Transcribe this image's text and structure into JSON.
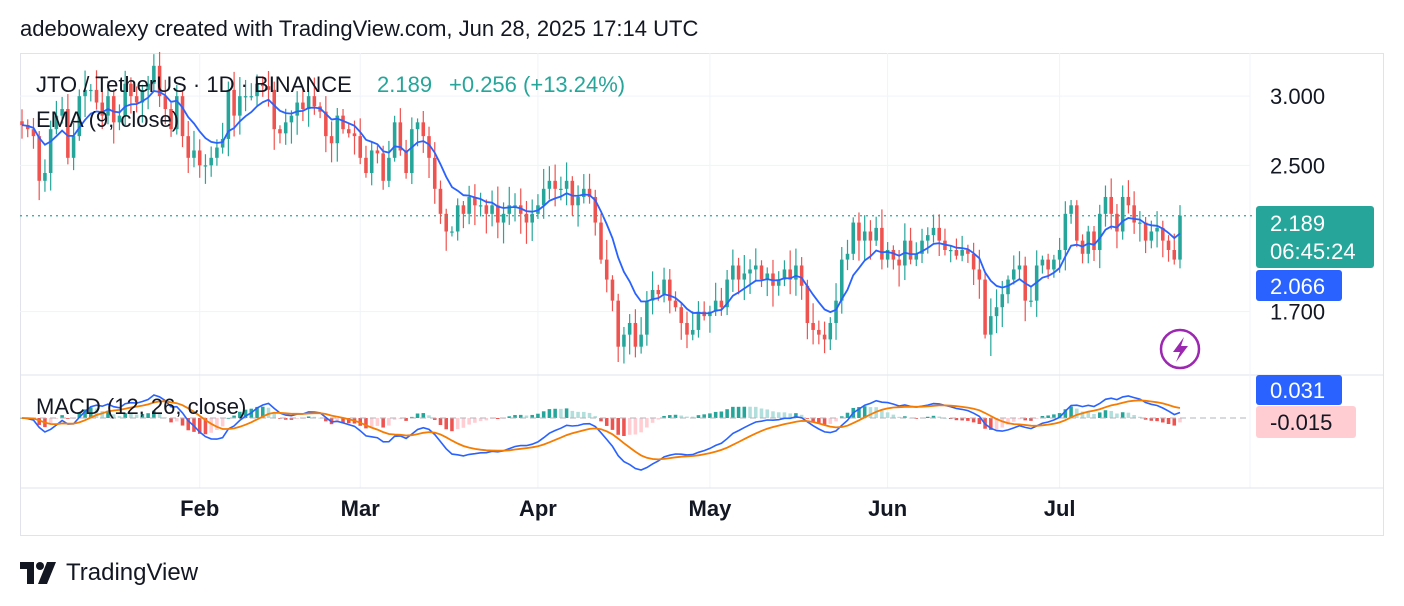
{
  "header": {
    "caption": "adebowalexy created with TradingView.com, Jun 28, 2025 17:14 UTC"
  },
  "legend": {
    "symbol": "JTO / TetherUS · 1D · BINANCE",
    "last": "2.189",
    "change": "+0.256 (+13.24%)",
    "ema": "EMA (9, close)",
    "macd": "MACD (12, 26, close)"
  },
  "price_axis": {
    "ticks": [
      {
        "value": 3.0,
        "label": "3.000"
      },
      {
        "value": 2.5,
        "label": "2.500"
      },
      {
        "value": 1.7,
        "label": "1.700"
      }
    ],
    "badges": {
      "price": "2.189",
      "countdown": "06:45:24",
      "ema": "2.066",
      "macd_line": "0.031",
      "macd_hist": "-0.015"
    }
  },
  "time_axis": {
    "labels": [
      "Feb",
      "Mar",
      "Apr",
      "May",
      "Jun",
      "Jul"
    ]
  },
  "footer": {
    "brand": "TradingView"
  },
  "colors": {
    "up": "#26a69a",
    "down": "#ef5350",
    "ema": "#2962ff",
    "signal": "#f57c00",
    "hist_up_strong": "#26a69a",
    "hist_up_weak": "#b2dfdb",
    "hist_down_strong": "#ef5350",
    "hist_down_weak": "#ffcdd2",
    "flash_icon": "#9c27b0",
    "grid": "#f0f3fa"
  },
  "chart_data": {
    "type": "candlestick",
    "symbol": "JTO / TetherUS",
    "interval": "1D",
    "exchange": "BINANCE",
    "last_price": 2.189,
    "change": 0.256,
    "change_pct": 13.24,
    "ema_last": 2.066,
    "y_scale": "log",
    "ylim": [
      1.45,
      3.3
    ],
    "month_starts": {
      "Feb": 31,
      "Mar": 59,
      "Apr": 90,
      "May": 120,
      "Jun": 151,
      "Jul": 181
    },
    "closes": [
      2.78,
      2.75,
      2.7,
      2.4,
      2.45,
      2.75,
      2.85,
      2.9,
      2.55,
      2.7,
      3.0,
      3.05,
      3.05,
      2.95,
      2.85,
      3.0,
      2.8,
      2.85,
      3.1,
      3.0,
      2.95,
      3.05,
      3.1,
      3.25,
      3.0,
      2.9,
      2.75,
      3.0,
      2.7,
      2.55,
      2.6,
      2.5,
      2.5,
      2.55,
      2.62,
      2.68,
      3.05,
      2.85,
      3.0,
      3.0,
      3.0,
      3.1,
      3.08,
      3.05,
      2.75,
      2.72,
      2.8,
      2.85,
      2.95,
      2.9,
      3.0,
      2.92,
      2.88,
      2.7,
      2.65,
      2.85,
      2.75,
      2.72,
      2.7,
      2.55,
      2.45,
      2.6,
      2.58,
      2.4,
      2.55,
      2.8,
      2.6,
      2.45,
      2.75,
      2.8,
      2.7,
      2.55,
      2.35,
      2.2,
      2.1,
      2.1,
      2.25,
      2.2,
      2.3,
      2.25,
      2.25,
      2.2,
      2.25,
      2.15,
      2.2,
      2.25,
      2.25,
      2.2,
      2.15,
      2.2,
      2.25,
      2.35,
      2.4,
      2.35,
      2.35,
      2.4,
      2.25,
      2.3,
      2.35,
      2.3,
      2.15,
      1.95,
      1.85,
      1.75,
      1.55,
      1.6,
      1.65,
      1.55,
      1.6,
      1.75,
      1.8,
      1.78,
      1.85,
      1.75,
      1.72,
      1.65,
      1.6,
      1.62,
      1.7,
      1.68,
      1.7,
      1.75,
      1.72,
      1.85,
      1.92,
      1.85,
      1.88,
      1.9,
      1.92,
      1.85,
      1.88,
      1.82,
      1.85,
      1.9,
      1.85,
      1.92,
      1.82,
      1.65,
      1.62,
      1.6,
      1.58,
      1.65,
      1.75,
      1.95,
      1.98,
      2.15,
      2.05,
      2.1,
      2.05,
      2.12,
      1.95,
      2.0,
      1.95,
      1.92,
      2.05,
      1.95,
      1.98,
      2.05,
      2.08,
      2.12,
      2.05,
      2.0,
      2.0,
      1.97,
      2.0,
      1.98,
      1.9,
      1.85,
      1.6,
      1.68,
      1.72,
      1.78,
      1.85,
      1.9,
      1.92,
      1.75,
      1.75,
      1.92,
      1.95,
      1.9,
      1.95,
      2.0,
      2.2,
      2.25,
      2.05,
      1.98,
      2.1,
      2.0,
      2.2,
      2.3,
      2.2,
      2.1,
      2.3,
      2.25,
      2.15,
      2.15,
      2.05,
      2.1,
      2.12,
      2.05,
      2.0,
      1.95,
      2.19
    ],
    "macd_axis": {
      "zero_level": 0,
      "badge_macd": 0.031,
      "badge_hist": -0.015
    }
  }
}
